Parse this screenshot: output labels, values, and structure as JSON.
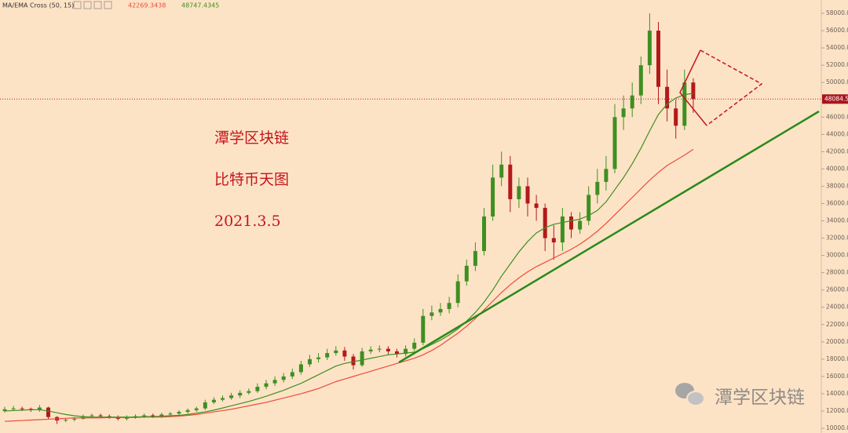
{
  "chart_data": {
    "type": "candlestick",
    "notes": [
      "潭学区块链",
      "比特币天图",
      "2021.3.5"
    ],
    "watermark": "潭学区块链",
    "up_color": "#3f8f22",
    "down_color": "#b3191b",
    "ylim": [
      9456,
      59543
    ],
    "yticks": [
      {
        "value": 10000,
        "label": "10000.00"
      },
      {
        "value": 12000,
        "label": "12000.00"
      },
      {
        "value": 14000,
        "label": "14000.00"
      },
      {
        "value": 16000,
        "label": "16000.00"
      },
      {
        "value": 18000,
        "label": "18000.00"
      },
      {
        "value": 20000,
        "label": "20000.00"
      },
      {
        "value": 22000,
        "label": "22000.00"
      },
      {
        "value": 24000,
        "label": "24000.00"
      },
      {
        "value": 26000,
        "label": "26000.00"
      },
      {
        "value": 28000,
        "label": "28000.00"
      },
      {
        "value": 30000,
        "label": "30000.00"
      },
      {
        "value": 32000,
        "label": "32000.00"
      },
      {
        "value": 34000,
        "label": "34000.00"
      },
      {
        "value": 36000,
        "label": "36000.00"
      },
      {
        "value": 38000,
        "label": "38000.00"
      },
      {
        "value": 40000,
        "label": "40000.00"
      },
      {
        "value": 42000,
        "label": "42000.00"
      },
      {
        "value": 44000,
        "label": "44000.00"
      },
      {
        "value": 46000,
        "label": "46000.00"
      },
      {
        "value": 48000,
        "label": "48000.00"
      },
      {
        "value": 50000,
        "label": "50000.00"
      },
      {
        "value": 52000,
        "label": "52000.00"
      },
      {
        "value": 54000,
        "label": "54000.00"
      },
      {
        "value": 56000,
        "label": "56000.00"
      },
      {
        "value": 58000,
        "label": "58000.00"
      }
    ],
    "current_price": {
      "value": 48084.5,
      "label": "48084.50"
    },
    "open": [
      12000,
      12200,
      12300,
      12250,
      12100,
      12400,
      11300,
      10900,
      11000,
      11100,
      11400,
      11500,
      11400,
      11300,
      11100,
      11300,
      11400,
      11500,
      11400,
      11600,
      11700,
      11900,
      12100,
      12300,
      13000,
      13300,
      13500,
      13800,
      14100,
      14300,
      14800,
      15200,
      15600,
      16000,
      16500,
      17400,
      18000,
      18200,
      18700,
      19000,
      18300,
      17300,
      18900,
      19100,
      19200,
      18900,
      18600,
      19200,
      19900,
      23000,
      23400,
      23800,
      24500,
      27000,
      28800,
      30500,
      34500,
      39000,
      40500,
      36500,
      38000,
      36000,
      35500,
      32000,
      31500,
      34500,
      33000,
      34000,
      37000,
      38500,
      40000,
      46000,
      47000,
      48500,
      52000,
      56000,
      49500,
      47000,
      45000,
      50000
    ],
    "high": [
      12500,
      12600,
      12500,
      12400,
      12700,
      12500,
      11400,
      11200,
      11300,
      11600,
      11700,
      11700,
      11600,
      11500,
      11500,
      11600,
      11700,
      11700,
      11800,
      11900,
      12100,
      12300,
      12500,
      13300,
      13600,
      13800,
      14100,
      14400,
      14600,
      15200,
      15600,
      16000,
      16400,
      16900,
      17800,
      18500,
      18700,
      19200,
      19500,
      19400,
      18600,
      19300,
      19500,
      19600,
      19500,
      19200,
      19600,
      20400,
      23800,
      24200,
      24500,
      25200,
      27800,
      29500,
      31500,
      35500,
      40500,
      42000,
      41500,
      39000,
      39000,
      37000,
      36000,
      33500,
      35500,
      35000,
      35000,
      38000,
      40000,
      41500,
      47500,
      48500,
      50000,
      53000,
      58000,
      57000,
      51500,
      48000,
      51500,
      50500
    ],
    "low": [
      11800,
      12000,
      12000,
      11900,
      11900,
      11000,
      10500,
      10700,
      10800,
      11000,
      11200,
      11200,
      11100,
      10900,
      10900,
      11100,
      11200,
      11200,
      11200,
      11400,
      11500,
      11700,
      11900,
      12100,
      12800,
      13100,
      13300,
      13500,
      13900,
      14100,
      14500,
      14900,
      15300,
      15700,
      16200,
      17100,
      17600,
      17900,
      18400,
      17800,
      16800,
      17100,
      18600,
      18800,
      18500,
      18200,
      18300,
      18900,
      19600,
      22500,
      23000,
      23300,
      24000,
      26500,
      28200,
      30000,
      34000,
      38000,
      35000,
      35500,
      34500,
      34000,
      30500,
      29500,
      30500,
      32000,
      32500,
      33500,
      36000,
      37500,
      39500,
      44500,
      46000,
      47500,
      51000,
      47500,
      45500,
      43500,
      44500,
      46500
    ],
    "close": [
      12200,
      12300,
      12250,
      12100,
      12400,
      11300,
      10900,
      11000,
      11100,
      11400,
      11500,
      11400,
      11300,
      11100,
      11300,
      11400,
      11500,
      11400,
      11600,
      11700,
      11900,
      12100,
      12300,
      13000,
      13300,
      13500,
      13800,
      14100,
      14300,
      14800,
      15200,
      15600,
      16000,
      16500,
      17400,
      18000,
      18200,
      18700,
      19000,
      18300,
      17300,
      18900,
      19100,
      19200,
      18900,
      18600,
      19200,
      19900,
      23000,
      23400,
      23800,
      24500,
      27000,
      28800,
      30500,
      34500,
      39000,
      40500,
      36500,
      38000,
      36000,
      35500,
      32000,
      31500,
      34500,
      33000,
      34000,
      37000,
      38500,
      40000,
      46000,
      47000,
      48500,
      52000,
      56000,
      49500,
      47000,
      45000,
      50000,
      48084.5
    ],
    "indicator": {
      "name": "MA/EMA Cross (50, 15)",
      "series": [
        {
          "color": "#ef4a3c",
          "values": [
            10800,
            10850,
            10900,
            10950,
            11000,
            11050,
            11100,
            11150,
            11200,
            11200,
            11200,
            11200,
            11250,
            11250,
            11250,
            11250,
            11300,
            11300,
            11300,
            11350,
            11400,
            11500,
            11600,
            11750,
            11900,
            12050,
            12200,
            12400,
            12600,
            12800,
            13000,
            13250,
            13500,
            13750,
            14000,
            14300,
            14600,
            15000,
            15400,
            15700,
            16000,
            16300,
            16600,
            16900,
            17200,
            17500,
            17800,
            18100,
            18500,
            19000,
            19600,
            20300,
            21000,
            21800,
            22700,
            23700,
            24700,
            25700,
            26600,
            27400,
            28100,
            28700,
            29200,
            29700,
            30200,
            30700,
            31300,
            32000,
            32800,
            33700,
            34700,
            35700,
            36700,
            37700,
            38700,
            39600,
            40400,
            41000,
            41600,
            42269.3438
          ]
        },
        {
          "color": "#3f8f22",
          "values": [
            12000,
            12050,
            12100,
            12150,
            12150,
            12000,
            11800,
            11600,
            11450,
            11350,
            11300,
            11300,
            11300,
            11300,
            11300,
            11300,
            11350,
            11350,
            11400,
            11450,
            11500,
            11600,
            11750,
            11900,
            12100,
            12350,
            12600,
            12850,
            13100,
            13400,
            13700,
            14050,
            14400,
            14800,
            15200,
            15700,
            16200,
            16700,
            17200,
            17500,
            17700,
            17900,
            18100,
            18300,
            18500,
            18600,
            18700,
            18800,
            19200,
            19700,
            20200,
            20800,
            21500,
            22400,
            23400,
            24600,
            26000,
            27600,
            29000,
            30400,
            31600,
            32600,
            33200,
            33600,
            33800,
            34000,
            34200,
            34600,
            35200,
            36200,
            37600,
            39000,
            40600,
            42400,
            44400,
            46300,
            47500,
            48200,
            48600,
            48747.4345
          ]
        }
      ]
    }
  }
}
